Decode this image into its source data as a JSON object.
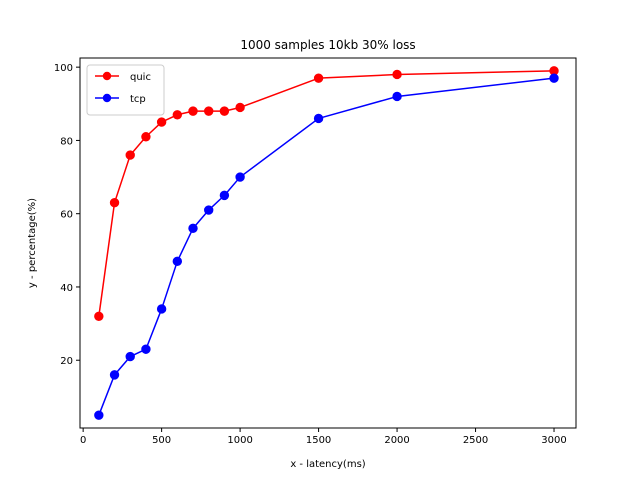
{
  "chart_data": {
    "type": "line",
    "title": "1000 samples 10kb 30% loss",
    "xlabel": "x - latency(ms)",
    "ylabel": "y - percentage(%)",
    "xlim": [
      -20,
      3140
    ],
    "ylim": [
      1.5,
      102.5
    ],
    "xticks": [
      0,
      500,
      1000,
      1500,
      2000,
      2500,
      3000
    ],
    "yticks": [
      20,
      40,
      60,
      80,
      100
    ],
    "legend_position": "top-left",
    "series": [
      {
        "name": "quic",
        "color": "#ff0000",
        "x": [
          100,
          200,
          300,
          400,
          500,
          600,
          700,
          800,
          900,
          1000,
          1500,
          2000,
          3000
        ],
        "y": [
          32,
          63,
          76,
          81,
          85,
          87,
          88,
          88,
          88,
          89,
          97,
          98,
          99
        ]
      },
      {
        "name": "tcp",
        "color": "#0000ff",
        "x": [
          100,
          200,
          300,
          400,
          500,
          600,
          700,
          800,
          900,
          1000,
          1500,
          2000,
          3000
        ],
        "y": [
          5,
          16,
          21,
          23,
          34,
          47,
          56,
          61,
          65,
          70,
          86,
          92,
          97
        ]
      }
    ]
  }
}
